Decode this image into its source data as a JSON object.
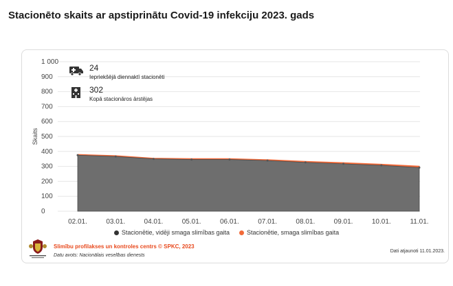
{
  "page": {
    "title": "Stacionēto skaits ar apstiprinātu Covid-19 infekciju 2023. gads"
  },
  "stats": [
    {
      "value": "24",
      "label": "Iepriekšējā diennaktī stacionēti",
      "icon": "ambulance-icon"
    },
    {
      "value": "302",
      "label": "Kopā stacionāros ārstējas",
      "icon": "hospital-icon"
    }
  ],
  "chart_data": {
    "type": "area",
    "ylabel": "Skaits",
    "xlabel": "",
    "ylim": [
      0,
      1000
    ],
    "yticks": [
      "0",
      "100",
      "200",
      "300",
      "400",
      "500",
      "600",
      "700",
      "800",
      "900",
      "1 000"
    ],
    "categories": [
      "02.01.",
      "03.01.",
      "04.01.",
      "05.01.",
      "06.01.",
      "07.01.",
      "08.01.",
      "09.01.",
      "10.01.",
      "11.01."
    ],
    "series": [
      {
        "name": "Stacionētie, vidēji smaga slimības gaita",
        "color": "#6e6e6e",
        "values": [
          375,
          366,
          350,
          346,
          346,
          339,
          327,
          317,
          307,
          292
        ]
      },
      {
        "name": "Stacionētie, smaga slimības gaita",
        "color": "#f26b3a",
        "values": [
          5,
          6,
          5,
          6,
          6,
          6,
          7,
          8,
          8,
          10
        ]
      }
    ],
    "grid": true,
    "legend": "bottom"
  },
  "footer": {
    "org": "Slimību profilakses un kontroles centrs © SPKC, 2023",
    "source": "Datu avots: Nacionālais veselības dienests",
    "updated": "Dati atjaunoti 11.01.2023."
  }
}
